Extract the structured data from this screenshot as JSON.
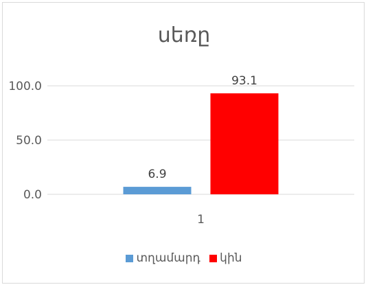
{
  "chart_data": {
    "type": "bar",
    "title": "սեռը",
    "categories": [
      "1"
    ],
    "series": [
      {
        "name": "տղամարդ",
        "values": [
          6.9
        ],
        "label": "6.9",
        "color": "#5b9bd5"
      },
      {
        "name": "կին",
        "values": [
          93.1
        ],
        "label": "93.1",
        "color": "#ff0000"
      }
    ],
    "ylim": [
      0,
      100
    ],
    "yticks": [
      {
        "value": 0,
        "label": "0.0"
      },
      {
        "value": 50,
        "label": "50.0"
      },
      {
        "value": 100,
        "label": "100.0"
      }
    ],
    "grid": true,
    "legend": "bottom"
  }
}
